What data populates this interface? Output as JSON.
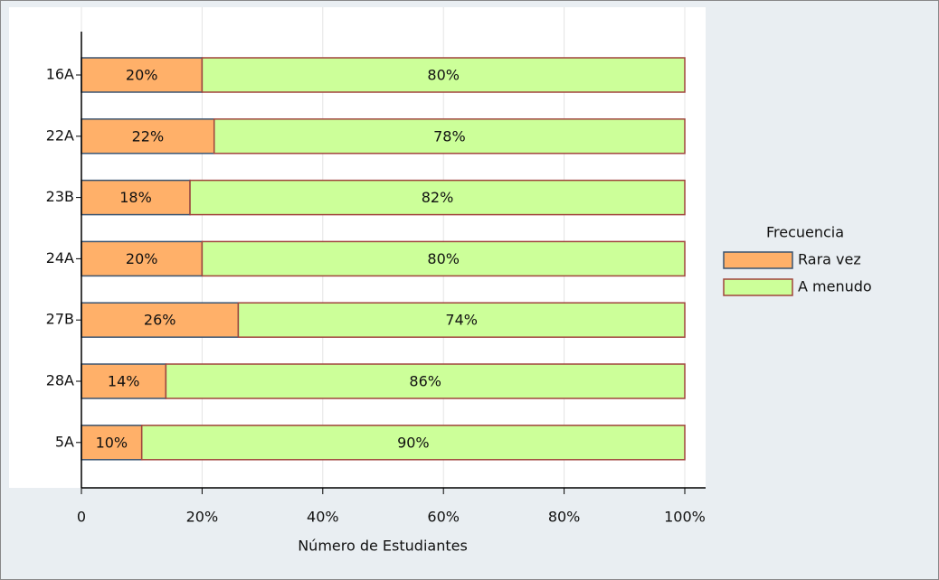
{
  "chart_data": {
    "type": "stacked-barh",
    "x_label": "Número de Estudiantes",
    "categories": [
      "16A",
      "22A",
      "23B",
      "24A",
      "27B",
      "28A",
      "5A"
    ],
    "series": [
      {
        "name": "Rara vez",
        "color": "#ffb069",
        "edge": "#3b5470",
        "values": [
          20,
          22,
          18,
          20,
          26,
          14,
          10
        ],
        "value_labels": [
          "20%",
          "22%",
          "18%",
          "20%",
          "26%",
          "14%",
          "10%"
        ]
      },
      {
        "name": "A menudo",
        "color": "#ccff99",
        "edge": "#a0443c",
        "values": [
          80,
          78,
          82,
          80,
          74,
          86,
          90
        ],
        "value_labels": [
          "80%",
          "78%",
          "82%",
          "80%",
          "74%",
          "86%",
          "90%"
        ]
      }
    ],
    "legend_title": "Frecuencia",
    "legend": "right",
    "xlim": [
      0,
      100
    ],
    "xticks": [
      0,
      {
        "value": 20,
        "label": "20%"
      },
      {
        "value": 40,
        "label": "40%"
      },
      {
        "value": 60,
        "label": "60%"
      },
      {
        "value": 80,
        "label": "80%"
      },
      {
        "value": 100,
        "label": "100%"
      }
    ],
    "grid": true
  }
}
